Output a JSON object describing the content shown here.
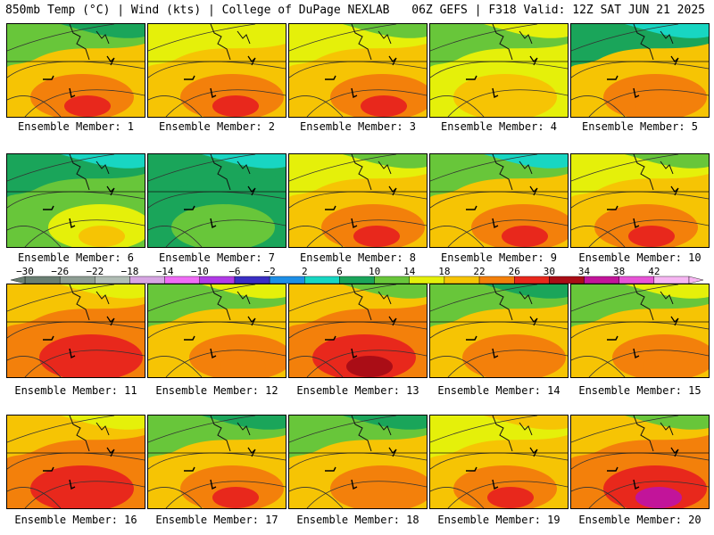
{
  "header": {
    "left": "850mb Temp (°C) | Wind (kts) | College of DuPage NEXLAB",
    "right": "06Z GEFS | F318 Valid: 12Z SAT JUN 21 2025"
  },
  "colors": {
    "-30": "#6a7f73",
    "-26": "#8e9e94",
    "-22": "#b0bdb4",
    "-18": "#d7a6e3",
    "-14": "#ef6cf5",
    "-10": "#b13be6",
    "-6": "#3b2fc4",
    "-2": "#1d8fe6",
    "2": "#18d6c2",
    "6": "#1aa55a",
    "10": "#68c63a",
    "14": "#e5f00a",
    "18": "#f6c404",
    "22": "#f3800b",
    "26": "#e8281c",
    "30": "#aa0d16",
    "34": "#c2149a",
    "38": "#e754d6",
    "42": "#f6b6f2"
  },
  "colorbar": {
    "values": [
      "-30",
      "-26",
      "-22",
      "-18",
      "-14",
      "-10",
      "-6",
      "-2",
      "2",
      "6",
      "10",
      "14",
      "18",
      "22",
      "26",
      "30",
      "34",
      "38",
      "42"
    ],
    "labels": [
      "−30",
      "−26",
      "−22",
      "−18",
      "−14",
      "−10",
      "−6",
      "−2",
      "2",
      "6",
      "10",
      "14",
      "18",
      "22",
      "26",
      "30",
      "34",
      "38",
      "42"
    ]
  },
  "members": [
    {
      "label": "Ensemble Member: 1",
      "bg": "#f6c404",
      "top": "#68c63a",
      "topAlt": "#1aa55a",
      "blob": "#f3800b",
      "core": "#e8281c"
    },
    {
      "label": "Ensemble Member: 2",
      "bg": "#f6c404",
      "top": "#e5f00a",
      "topAlt": "#e5f00a",
      "blob": "#f3800b",
      "core": "#e8281c"
    },
    {
      "label": "Ensemble Member: 3",
      "bg": "#f6c404",
      "top": "#e5f00a",
      "topAlt": "#68c63a",
      "blob": "#f3800b",
      "core": "#e8281c"
    },
    {
      "label": "Ensemble Member: 4",
      "bg": "#e5f00a",
      "top": "#68c63a",
      "topAlt": "#e5f00a",
      "blob": "#f6c404",
      "core": "#f6c404"
    },
    {
      "label": "Ensemble Member: 5",
      "bg": "#f6c404",
      "top": "#1aa55a",
      "topAlt": "#18d6c2",
      "blob": "#f3800b",
      "core": "#f3800b"
    },
    {
      "label": "Ensemble Member: 6",
      "bg": "#68c63a",
      "top": "#1aa55a",
      "topAlt": "#18d6c2",
      "blob": "#e5f00a",
      "core": "#f6c404"
    },
    {
      "label": "Ensemble Member: 7",
      "bg": "#1aa55a",
      "top": "#1aa55a",
      "topAlt": "#18d6c2",
      "blob": "#68c63a",
      "core": "#68c63a"
    },
    {
      "label": "Ensemble Member: 8",
      "bg": "#f6c404",
      "top": "#e5f00a",
      "topAlt": "#68c63a",
      "blob": "#f3800b",
      "core": "#e8281c"
    },
    {
      "label": "Ensemble Member: 9",
      "bg": "#f6c404",
      "top": "#68c63a",
      "topAlt": "#18d6c2",
      "blob": "#f3800b",
      "core": "#e8281c"
    },
    {
      "label": "Ensemble Member: 10",
      "bg": "#f6c404",
      "top": "#e5f00a",
      "topAlt": "#68c63a",
      "blob": "#f3800b",
      "core": "#e8281c"
    },
    {
      "label": "Ensemble Member: 11",
      "bg": "#f3800b",
      "top": "#f6c404",
      "topAlt": "#e5f00a",
      "blob": "#e8281c",
      "core": "#e8281c"
    },
    {
      "label": "Ensemble Member: 12",
      "bg": "#f6c404",
      "top": "#68c63a",
      "topAlt": "#e5f00a",
      "blob": "#f3800b",
      "core": "#f3800b"
    },
    {
      "label": "Ensemble Member: 13",
      "bg": "#f3800b",
      "top": "#f6c404",
      "topAlt": "#68c63a",
      "blob": "#e8281c",
      "core": "#aa0d16"
    },
    {
      "label": "Ensemble Member: 14",
      "bg": "#f6c404",
      "top": "#68c63a",
      "topAlt": "#1aa55a",
      "blob": "#f3800b",
      "core": "#f3800b"
    },
    {
      "label": "Ensemble Member: 15",
      "bg": "#f6c404",
      "top": "#68c63a",
      "topAlt": "#e5f00a",
      "blob": "#f3800b",
      "core": "#f3800b"
    },
    {
      "label": "Ensemble Member: 16",
      "bg": "#f3800b",
      "top": "#f6c404",
      "topAlt": "#e5f00a",
      "blob": "#e8281c",
      "core": "#e8281c"
    },
    {
      "label": "Ensemble Member: 17",
      "bg": "#f6c404",
      "top": "#68c63a",
      "topAlt": "#1aa55a",
      "blob": "#f3800b",
      "core": "#e8281c"
    },
    {
      "label": "Ensemble Member: 18",
      "bg": "#f6c404",
      "top": "#68c63a",
      "topAlt": "#1aa55a",
      "blob": "#f3800b",
      "core": "#f3800b"
    },
    {
      "label": "Ensemble Member: 19",
      "bg": "#f6c404",
      "top": "#e5f00a",
      "topAlt": "#f6c404",
      "blob": "#f3800b",
      "core": "#e8281c"
    },
    {
      "label": "Ensemble Member: 20",
      "bg": "#f3800b",
      "top": "#f6c404",
      "topAlt": "#68c63a",
      "blob": "#e8281c",
      "core": "#c2149a"
    }
  ]
}
